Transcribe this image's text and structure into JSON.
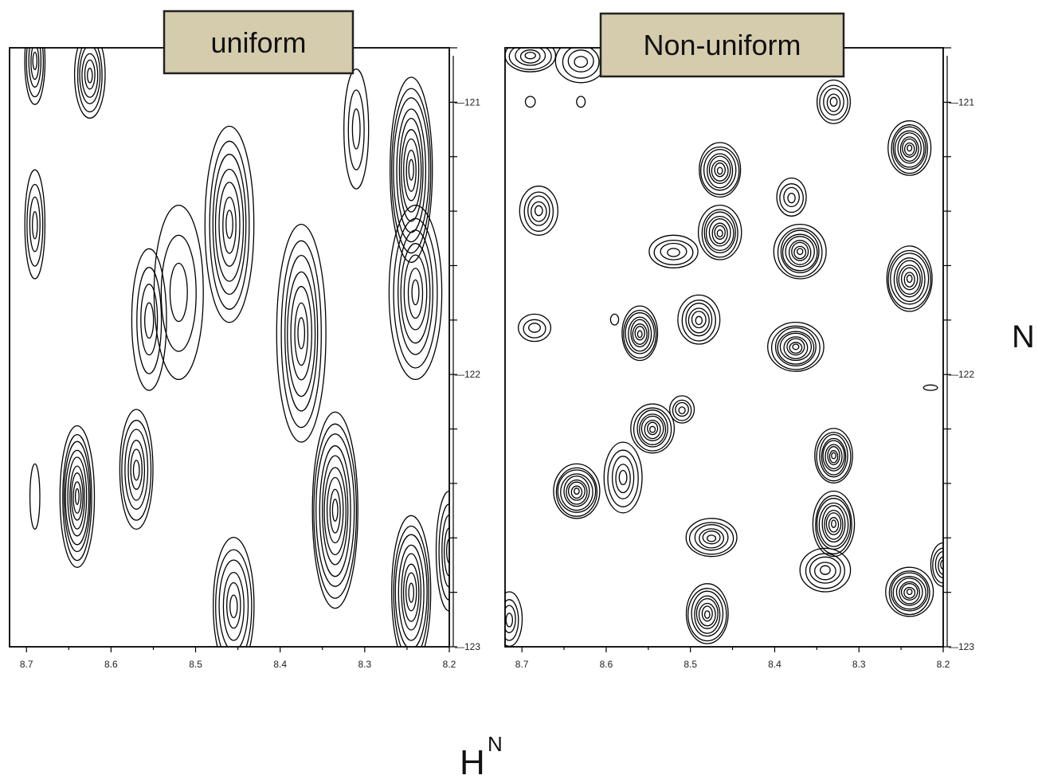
{
  "chart_data": [
    {
      "type": "contour",
      "title": "uniform",
      "x_ticks": [
        "8.7",
        "8.6",
        "8.5",
        "8.4",
        "8.3",
        "8.2"
      ],
      "y_ticks": [
        "121",
        "122",
        "123"
      ],
      "xlim": [
        8.72,
        8.2
      ],
      "ylim": [
        120.8,
        123.0
      ],
      "peaks": [
        {
          "x": 8.69,
          "y": 120.85,
          "w": 0.012,
          "h": 0.16,
          "levels": 5
        },
        {
          "x": 8.625,
          "y": 120.9,
          "w": 0.018,
          "h": 0.16,
          "levels": 6
        },
        {
          "x": 8.69,
          "y": 121.45,
          "w": 0.012,
          "h": 0.2,
          "levels": 4
        },
        {
          "x": 8.64,
          "y": 122.45,
          "w": 0.02,
          "h": 0.26,
          "levels": 9
        },
        {
          "x": 8.57,
          "y": 122.35,
          "w": 0.02,
          "h": 0.22,
          "levels": 6
        },
        {
          "x": 8.555,
          "y": 121.8,
          "w": 0.02,
          "h": 0.26,
          "levels": 4
        },
        {
          "x": 8.52,
          "y": 121.7,
          "w": 0.03,
          "h": 0.32,
          "levels": 3
        },
        {
          "x": 8.46,
          "y": 121.45,
          "w": 0.028,
          "h": 0.36,
          "levels": 7
        },
        {
          "x": 8.455,
          "y": 122.85,
          "w": 0.025,
          "h": 0.25,
          "levels": 6
        },
        {
          "x": 8.375,
          "y": 121.85,
          "w": 0.028,
          "h": 0.4,
          "levels": 7
        },
        {
          "x": 8.335,
          "y": 122.5,
          "w": 0.028,
          "h": 0.36,
          "levels": 9
        },
        {
          "x": 8.31,
          "y": 121.1,
          "w": 0.014,
          "h": 0.22,
          "levels": 3
        },
        {
          "x": 8.245,
          "y": 121.25,
          "w": 0.026,
          "h": 0.34,
          "levels": 9
        },
        {
          "x": 8.24,
          "y": 121.7,
          "w": 0.03,
          "h": 0.32,
          "levels": 7
        },
        {
          "x": 8.245,
          "y": 122.8,
          "w": 0.024,
          "h": 0.28,
          "levels": 8
        },
        {
          "x": 8.2,
          "y": 122.65,
          "w": 0.015,
          "h": 0.22,
          "levels": 5
        },
        {
          "x": 8.69,
          "y": 122.45,
          "w": 0.006,
          "h": 0.12,
          "levels": 1
        }
      ]
    },
    {
      "type": "contour",
      "title": "Non-uniform",
      "x_ticks": [
        "8.7",
        "8.6",
        "8.5",
        "8.4",
        "8.3",
        "8.2"
      ],
      "y_ticks": [
        "121",
        "122",
        "123"
      ],
      "xlim": [
        8.72,
        8.2
      ],
      "ylim": [
        120.8,
        123.0
      ],
      "peaks": [
        {
          "x": 8.69,
          "y": 120.83,
          "w": 0.03,
          "h": 0.06,
          "levels": 5
        },
        {
          "x": 8.63,
          "y": 120.85,
          "w": 0.03,
          "h": 0.08,
          "levels": 4
        },
        {
          "x": 8.33,
          "y": 121.0,
          "w": 0.02,
          "h": 0.08,
          "levels": 5
        },
        {
          "x": 8.24,
          "y": 121.17,
          "w": 0.025,
          "h": 0.1,
          "levels": 9
        },
        {
          "x": 8.465,
          "y": 121.25,
          "w": 0.025,
          "h": 0.1,
          "levels": 8
        },
        {
          "x": 8.465,
          "y": 121.48,
          "w": 0.025,
          "h": 0.1,
          "levels": 8
        },
        {
          "x": 8.38,
          "y": 121.35,
          "w": 0.018,
          "h": 0.07,
          "levels": 4
        },
        {
          "x": 8.68,
          "y": 121.4,
          "w": 0.022,
          "h": 0.09,
          "levels": 5
        },
        {
          "x": 8.52,
          "y": 121.55,
          "w": 0.03,
          "h": 0.06,
          "levels": 4
        },
        {
          "x": 8.37,
          "y": 121.55,
          "w": 0.03,
          "h": 0.1,
          "levels": 9
        },
        {
          "x": 8.24,
          "y": 121.65,
          "w": 0.028,
          "h": 0.12,
          "levels": 9
        },
        {
          "x": 8.49,
          "y": 121.8,
          "w": 0.024,
          "h": 0.09,
          "levels": 6
        },
        {
          "x": 8.56,
          "y": 121.85,
          "w": 0.022,
          "h": 0.1,
          "levels": 8
        },
        {
          "x": 8.375,
          "y": 121.9,
          "w": 0.032,
          "h": 0.09,
          "levels": 9
        },
        {
          "x": 8.685,
          "y": 121.83,
          "w": 0.02,
          "h": 0.05,
          "levels": 3
        },
        {
          "x": 8.545,
          "y": 122.2,
          "w": 0.025,
          "h": 0.09,
          "levels": 8
        },
        {
          "x": 8.51,
          "y": 122.13,
          "w": 0.015,
          "h": 0.05,
          "levels": 4
        },
        {
          "x": 8.58,
          "y": 122.38,
          "w": 0.022,
          "h": 0.13,
          "levels": 5
        },
        {
          "x": 8.635,
          "y": 122.43,
          "w": 0.028,
          "h": 0.1,
          "levels": 9
        },
        {
          "x": 8.33,
          "y": 122.3,
          "w": 0.022,
          "h": 0.1,
          "levels": 9
        },
        {
          "x": 8.33,
          "y": 122.55,
          "w": 0.025,
          "h": 0.12,
          "levels": 9
        },
        {
          "x": 8.475,
          "y": 122.6,
          "w": 0.03,
          "h": 0.07,
          "levels": 6
        },
        {
          "x": 8.34,
          "y": 122.72,
          "w": 0.03,
          "h": 0.08,
          "levels": 5
        },
        {
          "x": 8.48,
          "y": 122.88,
          "w": 0.025,
          "h": 0.11,
          "levels": 8
        },
        {
          "x": 8.24,
          "y": 122.8,
          "w": 0.028,
          "h": 0.09,
          "levels": 9
        },
        {
          "x": 8.2,
          "y": 122.7,
          "w": 0.015,
          "h": 0.08,
          "levels": 5
        },
        {
          "x": 8.715,
          "y": 122.9,
          "w": 0.015,
          "h": 0.1,
          "levels": 4
        },
        {
          "x": 8.69,
          "y": 121.0,
          "w": 0.006,
          "h": 0.02,
          "levels": 1
        },
        {
          "x": 8.63,
          "y": 121.0,
          "w": 0.005,
          "h": 0.02,
          "levels": 1
        },
        {
          "x": 8.59,
          "y": 121.8,
          "w": 0.005,
          "h": 0.02,
          "levels": 1
        },
        {
          "x": 8.215,
          "y": 122.05,
          "w": 0.008,
          "h": 0.01,
          "levels": 1
        }
      ]
    }
  ],
  "axes": {
    "x_title_main": "H",
    "x_title_sup": "N",
    "y_title": "N"
  }
}
